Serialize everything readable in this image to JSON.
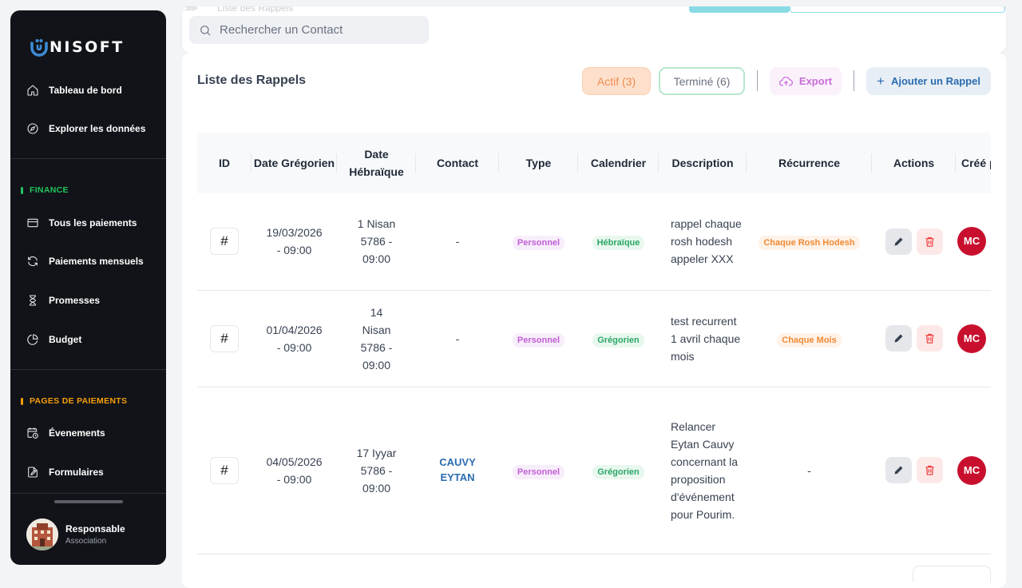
{
  "brand": {
    "logo_text": "NISOFT"
  },
  "sidebar": {
    "items_top": [
      {
        "label": "Tableau de bord",
        "icon": "home-icon"
      },
      {
        "label": "Explorer les données",
        "icon": "compass-icon"
      }
    ],
    "finance_title": "FINANCE",
    "finance_items": [
      {
        "label": "Tous les paiements",
        "icon": "credit-card-icon"
      },
      {
        "label": "Paiements mensuels",
        "icon": "refresh-icon"
      },
      {
        "label": "Promesses",
        "icon": "hourglass-icon"
      },
      {
        "label": "Budget",
        "icon": "pie-chart-icon"
      }
    ],
    "pages_title": "PAGES DE PAIEMENTS",
    "pages_items": [
      {
        "label": "Évenements",
        "icon": "calendar-clock-icon"
      },
      {
        "label": "Formulaires",
        "icon": "form-icon"
      }
    ],
    "user": {
      "name": "Responsable",
      "role": "Association"
    }
  },
  "header": {
    "search_placeholder": "Rechercher un Contact",
    "breadcrumb_partial": "Liste des Rappels"
  },
  "main": {
    "title": "Liste des Rappels",
    "tab_active": "Actif (3)",
    "tab_done": "Terminé (6)",
    "export_label": "Export",
    "add_label": "Ajouter un Rappel",
    "columns": [
      "ID",
      "Date Grégorien",
      "Date Hébraïque",
      "Contact",
      "Type",
      "Calendrier",
      "Description",
      "Récurrence",
      "Actions",
      "Créé par"
    ],
    "rows": [
      {
        "id_icon": "#",
        "date_greg": "19/03/2026 - 09:00",
        "date_heb": "1 Nisan 5786 - 09:00",
        "contact": "-",
        "type": "Personnel",
        "calendar": "Hébraïque",
        "description": "rappel chaque rosh hodesh appeler XXX",
        "recurrence": "Chaque Rosh Hodesh",
        "creator": "MC"
      },
      {
        "id_icon": "#",
        "date_greg": "01/04/2026 - 09:00",
        "date_heb": "14 Nisan 5786 - 09:00",
        "contact": "-",
        "type": "Personnel",
        "calendar": "Grégorien",
        "description": "test recurrent 1 avril chaque mois",
        "recurrence": "Chaque Mois",
        "creator": "MC"
      },
      {
        "id_icon": "#",
        "date_greg": "04/05/2026 - 09:00",
        "date_heb": "17 Iyyar 5786 - 09:00",
        "contact": "CAUVY EYTAN",
        "type": "Personnel",
        "calendar": "Grégorien",
        "description": "Relancer Eytan Cauvy concernant la proposition d'événement pour Pourim.",
        "recurrence": "-",
        "creator": "MC"
      }
    ]
  },
  "colors": {
    "sidebar_bg": "#111318",
    "brand_blue": "#3d8bd4",
    "finance_accent": "#22c55e",
    "pages_accent": "#f59e0b",
    "tab_active_bg": "#fde0cc",
    "tab_active_text": "#f08b4f",
    "tab_done_border": "#b7e6cc",
    "export_text": "#c86dd7",
    "add_text": "#2b6cb0",
    "creator_red": "#c8102e"
  }
}
